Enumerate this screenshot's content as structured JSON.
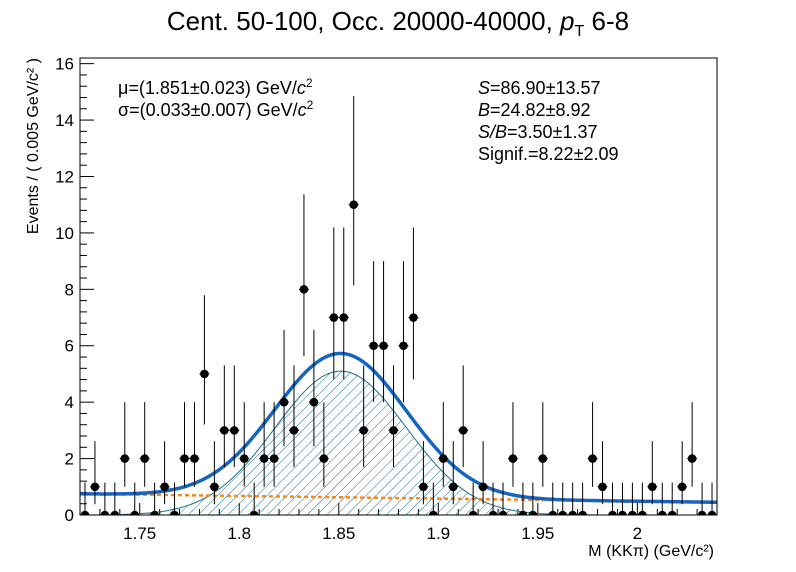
{
  "chart_data": {
    "type": "scatter",
    "title": "Cent. 50-100, Occ. 20000-40000,   pT 6-8",
    "xlabel": "M (KKπ) (GeV/c²)",
    "ylabel": "Events / ( 0.005 GeV/c² )",
    "xlim": [
      1.72,
      2.04
    ],
    "ylim": [
      0,
      16.2
    ],
    "x_ticks": [
      "1.75",
      "1.8",
      "1.85",
      "1.9",
      "1.95",
      "2"
    ],
    "y_ticks": [
      "0",
      "2",
      "4",
      "6",
      "8",
      "10",
      "12",
      "14",
      "16"
    ],
    "grid": false,
    "annotations_left": [
      "μ=(1.851±0.023) GeV/c²",
      "σ=(0.033±0.007) GeV/c²"
    ],
    "annotations_right": [
      "S=86.90±13.57",
      "B=24.82±8.92",
      "S/B=3.50±1.37",
      "Signif.=8.22±2.09"
    ],
    "series": [
      {
        "kind": "data_points",
        "x": [
          1.7225,
          1.7275,
          1.7325,
          1.7375,
          1.7425,
          1.7475,
          1.7525,
          1.7575,
          1.7625,
          1.7675,
          1.7725,
          1.7775,
          1.7825,
          1.7875,
          1.7925,
          1.7975,
          1.8025,
          1.8075,
          1.8125,
          1.8175,
          1.8225,
          1.8275,
          1.8325,
          1.8375,
          1.8425,
          1.8475,
          1.8525,
          1.8575,
          1.8625,
          1.8675,
          1.8725,
          1.8775,
          1.8825,
          1.8875,
          1.8925,
          1.8975,
          1.9025,
          1.9075,
          1.9125,
          1.9175,
          1.9225,
          1.9275,
          1.9325,
          1.9375,
          1.9425,
          1.9475,
          1.9525,
          1.9575,
          1.9625,
          1.9675,
          1.9725,
          1.9775,
          1.9825,
          1.9875,
          1.9925,
          1.9975,
          2.0025,
          2.0075,
          2.0125,
          2.0175,
          2.0225,
          2.0275,
          2.0325,
          2.0375
        ],
        "y": [
          0,
          1,
          0,
          0,
          2,
          0,
          2,
          0,
          1,
          0,
          2,
          2,
          5,
          1,
          3,
          3,
          2,
          0,
          2,
          2,
          4,
          3,
          8,
          4,
          2,
          7,
          7,
          11,
          3,
          6,
          6,
          3,
          6,
          7,
          1,
          0,
          2,
          1,
          3,
          0,
          1,
          0,
          0,
          2,
          0,
          0,
          2,
          0,
          0,
          0,
          0,
          2,
          1,
          0,
          0,
          0,
          0,
          1,
          0,
          0,
          1,
          2,
          0,
          0
        ]
      },
      {
        "kind": "total_fit",
        "color": "#1565c0",
        "mean": 1.851,
        "sigma": 0.033,
        "peak": 5.1,
        "bkg_left": 0.75,
        "bkg_right": 0.45
      },
      {
        "kind": "signal_component",
        "color": "#1f6e8c",
        "fill": "hatched"
      },
      {
        "kind": "background_component",
        "color": "#f28a1d",
        "style": "dashed"
      }
    ]
  }
}
